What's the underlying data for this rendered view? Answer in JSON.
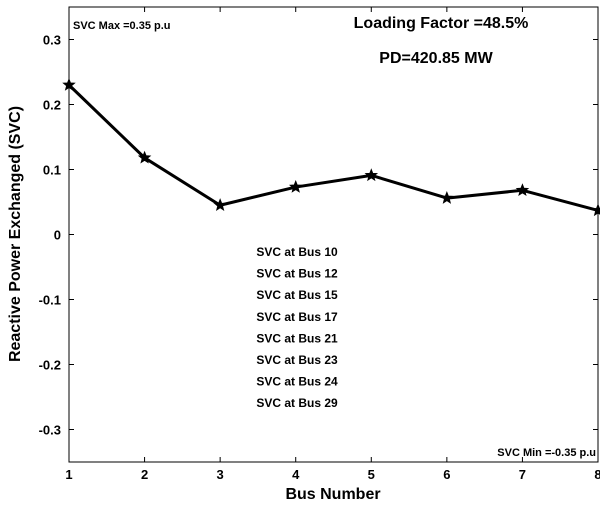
{
  "chart_data": {
    "type": "line",
    "title": "",
    "xlabel": "Bus Number",
    "ylabel": "Reactive Power Exchanged (SVC)",
    "xlim": [
      1,
      8
    ],
    "ylim": [
      -0.35,
      0.35
    ],
    "x_ticks": [
      1,
      2,
      3,
      4,
      5,
      6,
      7,
      8
    ],
    "y_ticks": [
      -0.3,
      -0.2,
      -0.1,
      0,
      0.1,
      0.2,
      0.3
    ],
    "x_tick_labels": [
      "1",
      "2",
      "3",
      "4",
      "5",
      "6",
      "7",
      "8"
    ],
    "y_tick_labels": [
      "-0.3",
      "-0.2",
      "-0.1",
      "0",
      "0.1",
      "0.2",
      "0.3"
    ],
    "grid": false,
    "legend": "none",
    "marker": "star",
    "series": [
      {
        "x": [
          1,
          2,
          3,
          4,
          5,
          6,
          7,
          8
        ],
        "values": [
          0.23,
          0.118,
          0.045,
          0.073,
          0.091,
          0.056,
          0.068,
          0.037
        ],
        "color": "#000000"
      }
    ],
    "annotations": {
      "svc_max": "SVC Max =0.35 p.u",
      "loading_factor": "Loading Factor =48.5%",
      "pd": "PD=420.85 MW",
      "svc_min": "SVC Min =-0.35 p.u",
      "bus_list": [
        "SVC at Bus 10",
        "SVC at Bus 12",
        "SVC at Bus 15",
        "SVC at Bus 17",
        "SVC at Bus 21",
        "SVC at Bus 23",
        "SVC at Bus 24",
        "SVC at Bus 29"
      ]
    }
  }
}
